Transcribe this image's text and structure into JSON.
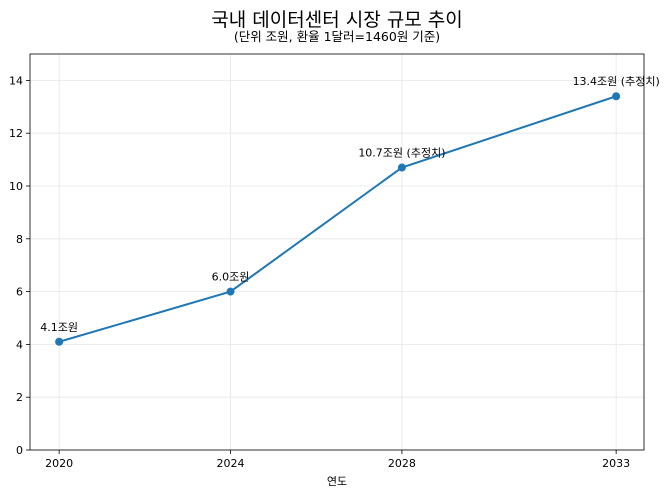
{
  "chart_data": {
    "type": "line",
    "title": "국내 데이터센터 시장 규모 추이",
    "subtitle": "(단위 조원, 환율 1달러=1460원 기준)",
    "xlabel": "연도",
    "ylabel": "",
    "x": [
      2020,
      2024,
      2028,
      2033
    ],
    "xticks": [
      "2020",
      "2024",
      "2028",
      "2033"
    ],
    "yticks": [
      0,
      2,
      4,
      6,
      8,
      10,
      12,
      14
    ],
    "xlim": [
      2019.32,
      2033.65
    ],
    "ylim": [
      0,
      15
    ],
    "grid": true,
    "series": [
      {
        "values": [
          4.1,
          6.0,
          10.7,
          13.4
        ],
        "labels": [
          "4.1조원",
          "6.0조원",
          "10.7조원 (추정치)",
          "13.4조원 (추정치)"
        ],
        "color": "#1f77b4",
        "marker": "circle"
      }
    ]
  }
}
